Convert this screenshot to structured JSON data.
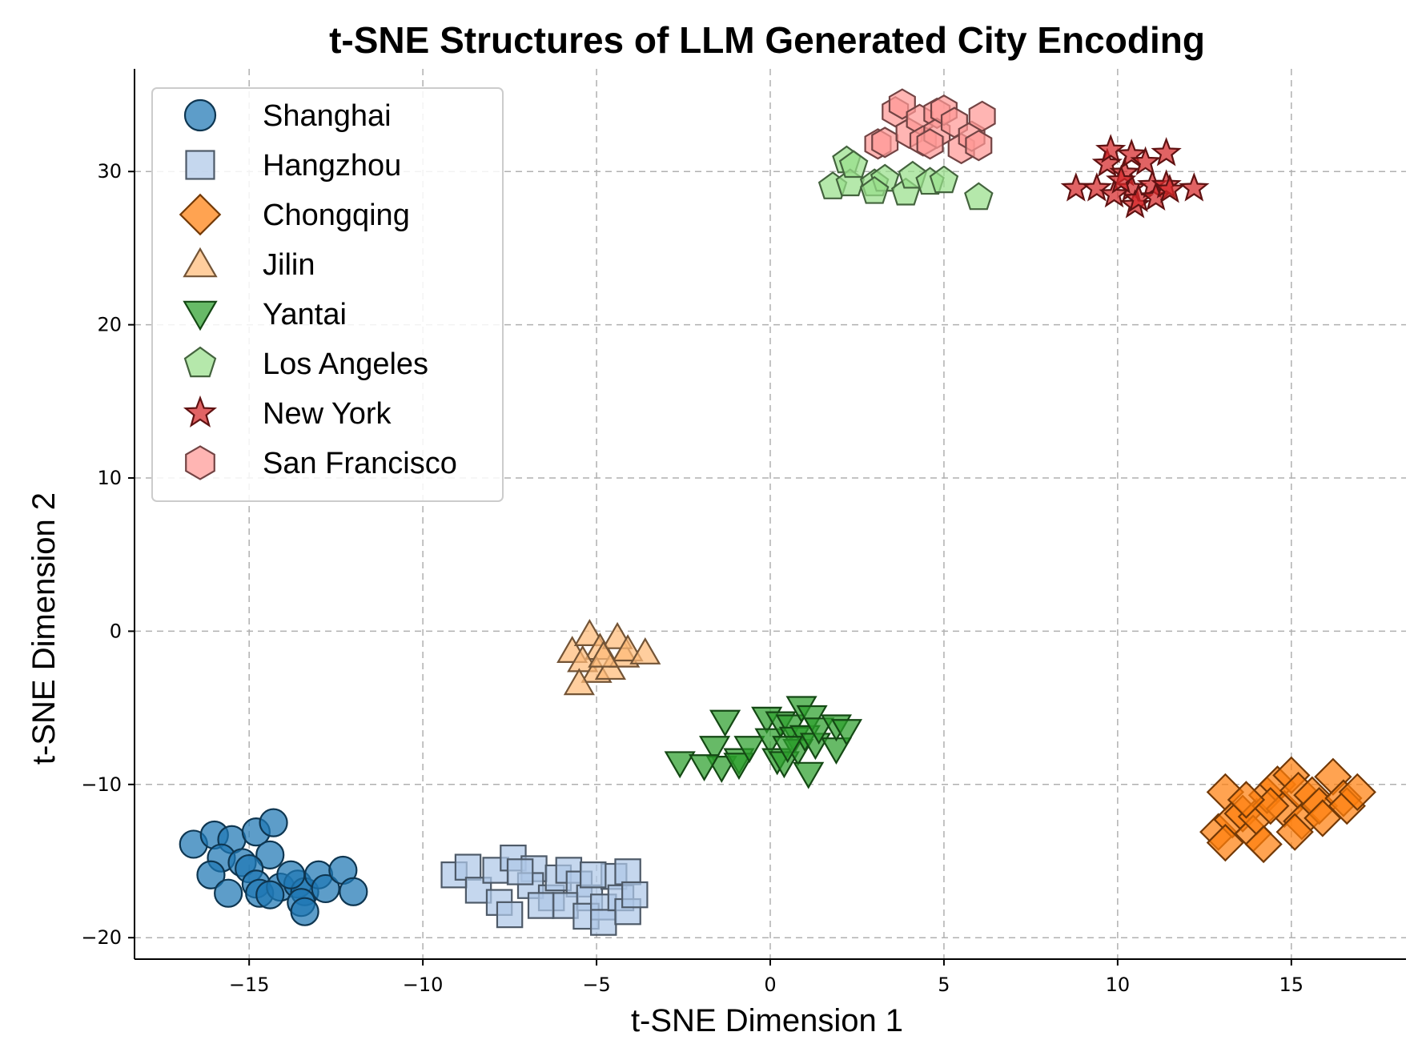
{
  "chart_data": {
    "type": "scatter",
    "title": "t-SNE Structures of LLM Generated City Encoding",
    "xlabel": "t-SNE Dimension 1",
    "ylabel": "t-SNE Dimension 2",
    "xlim": [
      -18.3,
      18.3
    ],
    "ylim": [
      -21.4,
      36.7
    ],
    "xticks": [
      -15,
      -10,
      -5,
      0,
      5,
      10,
      15
    ],
    "yticks": [
      -20,
      -10,
      0,
      10,
      20,
      30
    ],
    "xtick_labels": [
      "−15",
      "−10",
      "−5",
      "0",
      "5",
      "10",
      "15"
    ],
    "ytick_labels": [
      "−20",
      "−10",
      "0",
      "10",
      "20",
      "30"
    ],
    "grid": true,
    "legend_position": "top-left",
    "series": [
      {
        "name": "Shanghai",
        "marker": "circle",
        "color": "#1f77b4",
        "points": [
          [
            -16.6,
            -13.9
          ],
          [
            -16.0,
            -13.3
          ],
          [
            -15.5,
            -13.6
          ],
          [
            -14.8,
            -13.1
          ],
          [
            -14.3,
            -12.5
          ],
          [
            -15.8,
            -14.8
          ],
          [
            -14.4,
            -14.6
          ],
          [
            -15.2,
            -15.1
          ],
          [
            -16.1,
            -15.9
          ],
          [
            -15.0,
            -15.5
          ],
          [
            -14.8,
            -16.5
          ],
          [
            -14.7,
            -17.1
          ],
          [
            -15.6,
            -17.1
          ],
          [
            -14.1,
            -16.7
          ],
          [
            -13.6,
            -16.5
          ],
          [
            -13.4,
            -17.0
          ],
          [
            -13.5,
            -17.7
          ],
          [
            -13.4,
            -18.3
          ],
          [
            -13.0,
            -15.9
          ],
          [
            -12.8,
            -16.8
          ],
          [
            -12.3,
            -15.6
          ],
          [
            -12.0,
            -17.0
          ],
          [
            -13.8,
            -15.9
          ],
          [
            -14.4,
            -17.2
          ]
        ]
      },
      {
        "name": "Hangzhou",
        "marker": "square",
        "color": "#aec7e8",
        "points": [
          [
            -9.1,
            -15.9
          ],
          [
            -8.7,
            -15.4
          ],
          [
            -8.4,
            -16.9
          ],
          [
            -7.9,
            -15.6
          ],
          [
            -7.4,
            -14.8
          ],
          [
            -7.8,
            -17.7
          ],
          [
            -7.5,
            -18.5
          ],
          [
            -6.8,
            -15.5
          ],
          [
            -6.9,
            -16.6
          ],
          [
            -6.3,
            -17.4
          ],
          [
            -6.1,
            -16.1
          ],
          [
            -5.8,
            -15.6
          ],
          [
            -5.5,
            -16.5
          ],
          [
            -5.9,
            -17.9
          ],
          [
            -5.2,
            -17.4
          ],
          [
            -5.3,
            -18.6
          ],
          [
            -4.8,
            -18.0
          ],
          [
            -4.8,
            -19.0
          ],
          [
            -4.5,
            -16.0
          ],
          [
            -4.3,
            -17.4
          ],
          [
            -4.1,
            -18.3
          ],
          [
            -4.1,
            -15.7
          ],
          [
            -3.9,
            -17.2
          ],
          [
            -6.6,
            -17.9
          ],
          [
            -7.2,
            -15.7
          ],
          [
            -5.1,
            -15.9
          ]
        ]
      },
      {
        "name": "Chongqing",
        "marker": "diamond",
        "color": "#ff7f0e",
        "points": [
          [
            13.1,
            -10.5
          ],
          [
            12.9,
            -13.1
          ],
          [
            13.3,
            -12.3
          ],
          [
            13.6,
            -11.9
          ],
          [
            13.1,
            -13.8
          ],
          [
            13.9,
            -13.2
          ],
          [
            14.0,
            -12.1
          ],
          [
            14.3,
            -10.7
          ],
          [
            14.6,
            -10.0
          ],
          [
            14.2,
            -13.9
          ],
          [
            14.8,
            -11.6
          ],
          [
            15.0,
            -9.4
          ],
          [
            15.2,
            -10.4
          ],
          [
            15.3,
            -12.4
          ],
          [
            15.1,
            -13.1
          ],
          [
            15.6,
            -10.7
          ],
          [
            15.8,
            -11.4
          ],
          [
            15.9,
            -12.2
          ],
          [
            16.2,
            -9.5
          ],
          [
            16.5,
            -10.9
          ],
          [
            16.6,
            -11.4
          ],
          [
            16.9,
            -10.5
          ],
          [
            14.4,
            -11.4
          ],
          [
            13.7,
            -11.0
          ]
        ]
      },
      {
        "name": "Jilin",
        "marker": "triangle-up",
        "color": "#ffbb78",
        "points": [
          [
            -5.7,
            -1.3
          ],
          [
            -5.2,
            -0.2
          ],
          [
            -4.9,
            -1.1
          ],
          [
            -5.4,
            -1.9
          ],
          [
            -5.0,
            -2.6
          ],
          [
            -5.5,
            -3.4
          ],
          [
            -4.6,
            -2.4
          ],
          [
            -4.2,
            -1.6
          ],
          [
            -4.4,
            -0.4
          ],
          [
            -4.1,
            -1.2
          ],
          [
            -3.6,
            -1.4
          ],
          [
            -4.8,
            -1.6
          ]
        ]
      },
      {
        "name": "Yantai",
        "marker": "triangle-down",
        "color": "#2ca02c",
        "points": [
          [
            -2.6,
            -8.6
          ],
          [
            -1.3,
            -5.9
          ],
          [
            -1.6,
            -7.6
          ],
          [
            -1.4,
            -8.9
          ],
          [
            -0.9,
            -8.4
          ],
          [
            -0.9,
            -8.7
          ],
          [
            -0.6,
            -7.6
          ],
          [
            -0.1,
            -5.7
          ],
          [
            0.0,
            -7.1
          ],
          [
            0.2,
            -8.4
          ],
          [
            0.3,
            -6.0
          ],
          [
            0.4,
            -8.6
          ],
          [
            0.6,
            -6.2
          ],
          [
            0.7,
            -7.0
          ],
          [
            0.8,
            -7.8
          ],
          [
            0.9,
            -5.0
          ],
          [
            1.0,
            -6.9
          ],
          [
            1.1,
            -9.3
          ],
          [
            1.2,
            -5.6
          ],
          [
            1.3,
            -7.4
          ],
          [
            1.4,
            -6.4
          ],
          [
            1.9,
            -7.7
          ],
          [
            1.9,
            -6.2
          ],
          [
            2.2,
            -6.5
          ],
          [
            -1.9,
            -8.8
          ],
          [
            0.5,
            -7.6
          ]
        ]
      },
      {
        "name": "Los Angeles",
        "marker": "pentagon",
        "color": "#98df8a",
        "points": [
          [
            1.8,
            29.0
          ],
          [
            2.2,
            30.7
          ],
          [
            2.3,
            29.2
          ],
          [
            3.0,
            29.2
          ],
          [
            3.3,
            29.5
          ],
          [
            3.0,
            28.7
          ],
          [
            3.9,
            28.6
          ],
          [
            4.1,
            29.7
          ],
          [
            4.6,
            29.3
          ],
          [
            5.0,
            29.4
          ],
          [
            6.0,
            28.3
          ],
          [
            2.4,
            30.4
          ]
        ]
      },
      {
        "name": "New York",
        "marker": "star",
        "color": "#d62728",
        "points": [
          [
            8.8,
            28.9
          ],
          [
            9.4,
            28.9
          ],
          [
            9.7,
            30.5
          ],
          [
            9.8,
            31.4
          ],
          [
            10.2,
            29.9
          ],
          [
            10.4,
            31.1
          ],
          [
            10.4,
            28.9
          ],
          [
            10.5,
            27.8
          ],
          [
            10.6,
            28.2
          ],
          [
            10.8,
            30.6
          ],
          [
            11.0,
            29.1
          ],
          [
            11.1,
            28.3
          ],
          [
            11.4,
            31.2
          ],
          [
            11.4,
            29.1
          ],
          [
            11.5,
            28.8
          ],
          [
            12.2,
            28.9
          ],
          [
            9.9,
            28.5
          ],
          [
            10.1,
            29.4
          ]
        ]
      },
      {
        "name": "San Francisco",
        "marker": "hexagon",
        "color": "#ff9896",
        "points": [
          [
            3.1,
            31.8
          ],
          [
            3.3,
            31.9
          ],
          [
            3.6,
            33.9
          ],
          [
            3.8,
            34.4
          ],
          [
            4.0,
            32.5
          ],
          [
            4.3,
            33.4
          ],
          [
            4.4,
            32.0
          ],
          [
            4.8,
            33.8
          ],
          [
            4.8,
            32.5
          ],
          [
            5.0,
            34.0
          ],
          [
            5.3,
            33.2
          ],
          [
            5.5,
            31.5
          ],
          [
            5.8,
            32.3
          ],
          [
            6.1,
            33.6
          ],
          [
            6.0,
            31.7
          ],
          [
            4.6,
            31.8
          ]
        ]
      }
    ]
  }
}
